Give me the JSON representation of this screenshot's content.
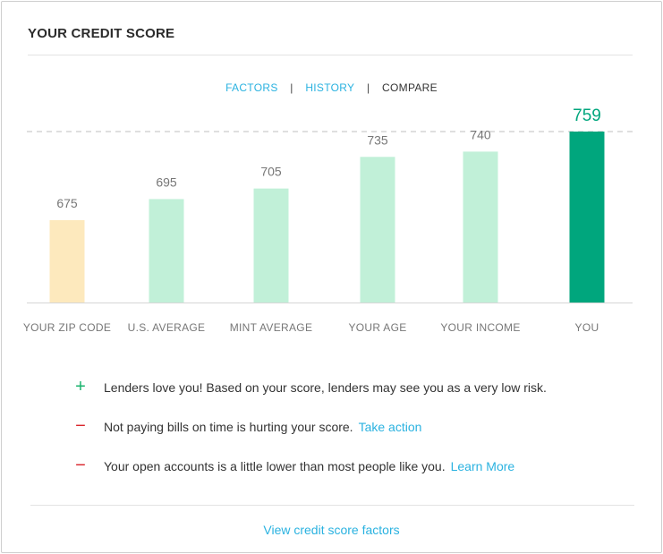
{
  "card": {
    "title": "YOUR CREDIT SCORE"
  },
  "tabs": [
    {
      "label": "FACTORS",
      "active": false
    },
    {
      "label": "HISTORY",
      "active": false
    },
    {
      "label": "COMPARE",
      "active": true
    }
  ],
  "tab_separator": "|",
  "colors": {
    "accent_link": "#2ab2e0",
    "zip_bar": "#fde9bd",
    "light_bar": "#c1f0d8",
    "you_bar": "#00a67d",
    "plus": "#1ab36d",
    "minus": "#d9262c"
  },
  "chart_data": {
    "type": "bar",
    "categories": [
      "YOUR ZIP CODE",
      "U.S. AVERAGE",
      "MINT AVERAGE",
      "YOUR AGE",
      "YOUR INCOME",
      "YOU"
    ],
    "values": [
      675,
      695,
      705,
      735,
      740,
      759
    ],
    "data_labels": [
      "675",
      "695",
      "705",
      "735",
      "740",
      "759"
    ],
    "bar_colors": [
      "#fde9bd",
      "#c1f0d8",
      "#c1f0d8",
      "#c1f0d8",
      "#c1f0d8",
      "#00a67d"
    ],
    "highlight_index": 5,
    "reference_line": {
      "value": 759,
      "style": "dashed"
    },
    "title": "",
    "xlabel": "",
    "ylabel": "",
    "grid": false
  },
  "factors": [
    {
      "sign": "+",
      "type": "positive",
      "text": "Lenders love you!  Based on your score, lenders may see you as a very low risk.",
      "link": ""
    },
    {
      "sign": "−",
      "type": "negative",
      "text": "Not paying bills on time is hurting your score.",
      "link": "Take action"
    },
    {
      "sign": "−",
      "type": "negative",
      "text": "Your open accounts is a little lower than most people like you.",
      "link": "Learn More"
    }
  ],
  "footer": {
    "link": "View credit score factors"
  }
}
